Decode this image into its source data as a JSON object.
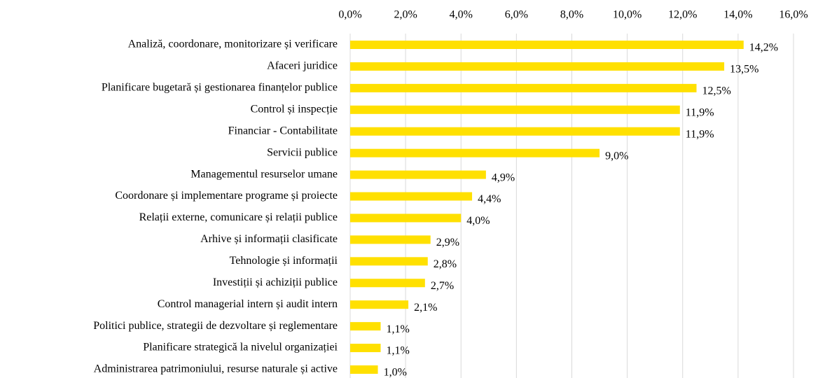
{
  "chart_data": {
    "type": "bar",
    "orientation": "horizontal",
    "categories": [
      "Analiză, coordonare, monitorizare și verificare",
      "Afaceri juridice",
      "Planificare bugetară și gestionarea finanțelor publice",
      "Control și inspecție",
      "Financiar - Contabilitate",
      "Servicii publice",
      "Managementul resurselor umane",
      "Coordonare și implementare programe și proiecte",
      "Relații externe, comunicare și relații publice",
      "Arhive și informații clasificate",
      "Tehnologie și informații",
      "Investiții și achiziții publice",
      "Control managerial intern și audit intern",
      "Politici publice, strategii de dezvoltare și reglementare",
      "Planificare strategică la nivelul organizației",
      "Administrarea patrimoniului, resurse naturale și active"
    ],
    "values": [
      14.2,
      13.5,
      12.5,
      11.9,
      11.9,
      9.0,
      4.9,
      4.4,
      4.0,
      2.9,
      2.8,
      2.7,
      2.1,
      1.1,
      1.1,
      1.0
    ],
    "value_labels": [
      "14,2%",
      "13,5%",
      "12,5%",
      "11,9%",
      "11,9%",
      "9,0%",
      "4,9%",
      "4,4%",
      "4,0%",
      "2,9%",
      "2,8%",
      "2,7%",
      "2,1%",
      "1,1%",
      "1,1%",
      "1,0%"
    ],
    "color": "#FFE000",
    "xlim": [
      0,
      16
    ],
    "xticks": [
      {
        "value": 0,
        "label": "0,0%"
      },
      {
        "value": 2,
        "label": "2,0%"
      },
      {
        "value": 4,
        "label": "4,0%"
      },
      {
        "value": 6,
        "label": "6,0%"
      },
      {
        "value": 8,
        "label": "8,0%"
      },
      {
        "value": 10,
        "label": "10,0%"
      },
      {
        "value": 12,
        "label": "12,0%"
      },
      {
        "value": 14,
        "label": "14,0%"
      },
      {
        "value": 16,
        "label": "16,0%"
      }
    ],
    "grid": true,
    "axis_position": "top"
  }
}
